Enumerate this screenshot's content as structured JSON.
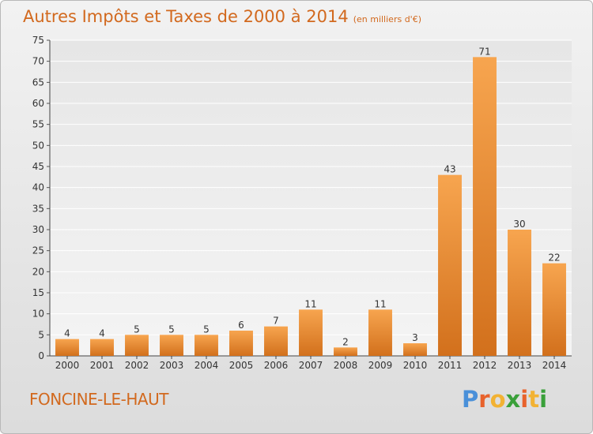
{
  "chart_data": {
    "type": "bar",
    "title": "Autres Impôts et Taxes de 2000 à 2014",
    "subtitle": "(en milliers d'€)",
    "categories": [
      "2000",
      "2001",
      "2002",
      "2003",
      "2004",
      "2005",
      "2006",
      "2007",
      "2008",
      "2009",
      "2010",
      "2011",
      "2012",
      "2013",
      "2014"
    ],
    "values": [
      4,
      4,
      5,
      5,
      5,
      6,
      7,
      11,
      2,
      11,
      3,
      43,
      71,
      30,
      22
    ],
    "ylim": [
      0,
      75
    ],
    "yticks": [
      0,
      5,
      10,
      15,
      20,
      25,
      30,
      35,
      40,
      45,
      50,
      55,
      60,
      65,
      70,
      75
    ],
    "grid": true,
    "colors": {
      "bar_light": "#f7a54f",
      "bar_dark": "#d2701c",
      "title": "#d2691e"
    }
  },
  "footer": {
    "place": "FONCINE-LE-HAUT",
    "logo": "Proxiti",
    "logo_colors": [
      "#4a90d9",
      "#e8622c",
      "#f2b233",
      "#3aa03a",
      "#e8622c",
      "#f2b233",
      "#3aa03a"
    ]
  }
}
